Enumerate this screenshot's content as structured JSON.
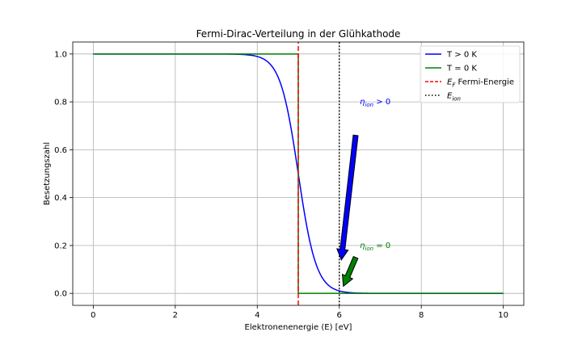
{
  "chart_data": {
    "type": "line",
    "title": "Fermi-Dirac-Verteilung in der Glühkathode",
    "xlabel": "Elektronenenergie (E) [eV]",
    "ylabel": "Besetzungszahl",
    "xlim": [
      -0.5,
      10.5
    ],
    "ylim": [
      -0.05,
      1.05
    ],
    "xticks": [
      0,
      2,
      4,
      6,
      8,
      10
    ],
    "xtick_labels": [
      "0",
      "2",
      "4",
      "6",
      "8",
      "10"
    ],
    "yticks": [
      0.0,
      0.2,
      0.4,
      0.6,
      0.8,
      1.0
    ],
    "ytick_labels": [
      "0.0",
      "0.2",
      "0.4",
      "0.6",
      "0.8",
      "1.0"
    ],
    "grid": true,
    "legend_position": "top-right",
    "fermi_energy": 5,
    "kT": 0.22,
    "series": [
      {
        "name": "T > 0 K",
        "color": "#0000ff",
        "style": "solid",
        "x": [
          0,
          1,
          2,
          3,
          3.5,
          4,
          4.25,
          4.5,
          4.75,
          5,
          5.25,
          5.5,
          5.75,
          6,
          6.5,
          7,
          8,
          9,
          10
        ],
        "y": [
          1.0,
          1.0,
          1.0,
          0.9999,
          0.9989,
          0.9894,
          0.9686,
          0.911,
          0.7578,
          0.5,
          0.2422,
          0.089,
          0.0314,
          0.0106,
          0.0011,
          0.0001,
          0.0,
          0.0,
          0.0
        ]
      },
      {
        "name": "T = 0 K",
        "color": "#008000",
        "style": "solid",
        "x": [
          0,
          5,
          5,
          10
        ],
        "y": [
          1.0,
          1.0,
          0.0,
          0.0
        ]
      },
      {
        "name": "E_F Fermi-Energie",
        "color": "#ff0000",
        "style": "dashed",
        "x": [
          5,
          5
        ],
        "y": [
          -0.05,
          1.05
        ]
      },
      {
        "name": "E_ion",
        "color": "#000000",
        "style": "dotted",
        "x": [
          6,
          6
        ],
        "y": [
          -0.05,
          1.05
        ]
      }
    ],
    "legend": [
      {
        "label": "T > 0 K",
        "color": "#0000ff",
        "style": "solid"
      },
      {
        "label": "T = 0 K",
        "color": "#008000",
        "style": "solid"
      },
      {
        "label_main": "E",
        "label_sub": "F",
        "label_rest": " Fermi-Energie",
        "color": "#ff0000",
        "style": "dashed"
      },
      {
        "label_main": "E",
        "label_sub": "ion",
        "label_rest": "",
        "color": "#000000",
        "style": "dotted"
      }
    ],
    "annotations": [
      {
        "text_main": "η",
        "text_sub": "ion",
        "text_rest": " > 0",
        "text_x": 6.5,
        "text_y": 0.8,
        "arrow_from": [
          6.4,
          0.66
        ],
        "arrow_to": [
          6.05,
          0.14
        ],
        "color": "#0000ff"
      },
      {
        "text_main": "η",
        "text_sub": "ion",
        "text_rest": " = 0",
        "text_x": 6.5,
        "text_y": 0.2,
        "arrow_from": [
          6.4,
          0.15
        ],
        "arrow_to": [
          6.1,
          0.03
        ],
        "color": "#008000"
      }
    ]
  }
}
